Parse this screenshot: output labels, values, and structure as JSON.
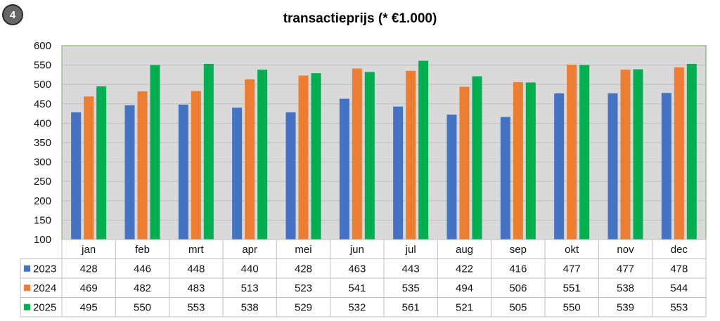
{
  "badge": "4",
  "chart_data": {
    "type": "bar",
    "title": "transactieprijs (* €1.000)",
    "xlabel": "",
    "ylabel": "",
    "ylim": [
      100,
      600
    ],
    "yticks": [
      100,
      150,
      200,
      250,
      300,
      350,
      400,
      450,
      500,
      550,
      600
    ],
    "grid": true,
    "legend": "data-table",
    "categories": [
      "jan",
      "feb",
      "mrt",
      "apr",
      "mei",
      "jun",
      "jul",
      "aug",
      "sep",
      "okt",
      "nov",
      "dec"
    ],
    "series": [
      {
        "name": "2023",
        "color": "#4472C4",
        "values": [
          428,
          446,
          448,
          440,
          428,
          463,
          443,
          422,
          416,
          477,
          477,
          478
        ]
      },
      {
        "name": "2024",
        "color": "#ED7D31",
        "values": [
          469,
          482,
          483,
          513,
          523,
          541,
          535,
          494,
          506,
          551,
          538,
          544
        ]
      },
      {
        "name": "2025",
        "color": "#00B050",
        "values": [
          495,
          550,
          553,
          538,
          529,
          532,
          561,
          521,
          505,
          550,
          539,
          553
        ]
      }
    ],
    "plot_background": "#D9D9D9",
    "border_color": "#70AD47"
  }
}
